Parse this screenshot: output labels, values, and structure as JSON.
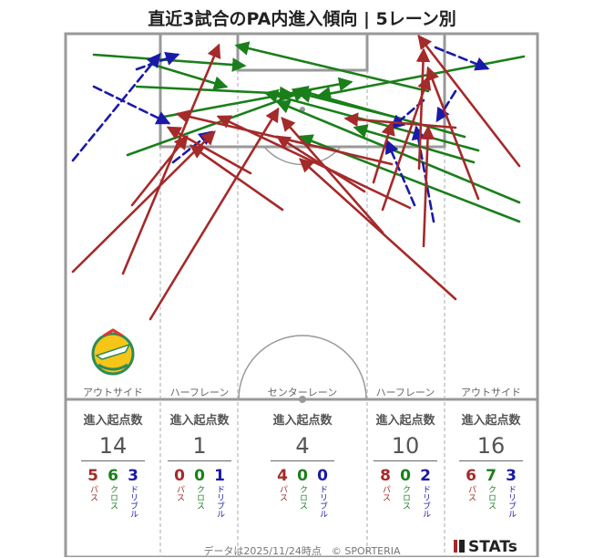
{
  "title": "直近3試合のPA内進入傾向 | 5レーン別",
  "lanes": [
    {
      "label": "アウトサイド",
      "stat_header": "進入起点数",
      "total": "14",
      "pass": "5",
      "cross": "6",
      "dribble": "3"
    },
    {
      "label": "ハーフレーン",
      "stat_header": "進入起点数",
      "total": "1",
      "pass": "0",
      "cross": "0",
      "dribble": "1"
    },
    {
      "label": "センターレーン",
      "stat_header": "進入起点数",
      "total": "4",
      "pass": "4",
      "cross": "0",
      "dribble": "0"
    },
    {
      "label": "ハーフレーン",
      "stat_header": "進入起点数",
      "total": "10",
      "pass": "8",
      "cross": "0",
      "dribble": "2"
    },
    {
      "label": "アウトサイド",
      "stat_header": "進入起点数",
      "total": "16",
      "pass": "6",
      "cross": "7",
      "dribble": "3"
    }
  ],
  "type_labels": {
    "pass": "パス",
    "cross": "クロス",
    "dribble": "ドリブル"
  },
  "colors": {
    "pass": "#a52a2a",
    "cross": "#1a7f1a",
    "dribble": "#1a1aa8",
    "pitch_line": "#999999"
  },
  "footer": "データは2025/11/24時点　© SPORTERIA",
  "brand": "STATs",
  "arrows": [
    {
      "type": "cross",
      "from": [
        103,
        60
      ],
      "to": [
        268,
        72
      ]
    },
    {
      "type": "cross",
      "from": [
        150,
        95
      ],
      "to": [
        320,
        103
      ]
    },
    {
      "type": "cross",
      "from": [
        140,
        170
      ],
      "to": [
        335,
        100
      ]
    },
    {
      "type": "cross",
      "from": [
        165,
        70
      ],
      "to": [
        248,
        95
      ]
    },
    {
      "type": "cross",
      "from": [
        180,
        128
      ],
      "to": [
        385,
        90
      ]
    },
    {
      "type": "cross",
      "from": [
        575,
        62
      ],
      "to": [
        350,
        105
      ]
    },
    {
      "type": "cross",
      "from": [
        570,
        222
      ],
      "to": [
        305,
        112
      ]
    },
    {
      "type": "cross",
      "from": [
        570,
        243
      ],
      "to": [
        330,
        150
      ]
    },
    {
      "type": "cross",
      "from": [
        520,
        178
      ],
      "to": [
        390,
        140
      ]
    },
    {
      "type": "cross",
      "from": [
        510,
        150
      ],
      "to": [
        325,
        98
      ]
    },
    {
      "type": "cross",
      "from": [
        470,
        100
      ],
      "to": [
        260,
        50
      ]
    },
    {
      "type": "cross",
      "from": [
        525,
        165
      ],
      "to": [
        292,
        102
      ]
    },
    {
      "type": "cross",
      "from": [
        440,
        130
      ],
      "to": [
        328,
        102
      ]
    },
    {
      "type": "dribble",
      "from": [
        80,
        176
      ],
      "to": [
        175,
        60
      ]
    },
    {
      "type": "dribble",
      "from": [
        103,
        95
      ],
      "to": [
        185,
        135
      ]
    },
    {
      "type": "dribble",
      "from": [
        150,
        76
      ],
      "to": [
        195,
        60
      ]
    },
    {
      "type": "dribble",
      "from": [
        190,
        178
      ],
      "to": [
        232,
        145
      ]
    },
    {
      "type": "dribble",
      "from": [
        478,
        52
      ],
      "to": [
        535,
        75
      ]
    },
    {
      "type": "dribble",
      "from": [
        500,
        100
      ],
      "to": [
        480,
        132
      ]
    },
    {
      "type": "dribble",
      "from": [
        465,
        110
      ],
      "to": [
        430,
        140
      ]
    },
    {
      "type": "dribble",
      "from": [
        455,
        225
      ],
      "to": [
        425,
        155
      ]
    },
    {
      "type": "dribble",
      "from": [
        476,
        243
      ],
      "to": [
        457,
        140
      ]
    },
    {
      "type": "pass",
      "from": [
        80,
        298
      ],
      "to": [
        235,
        145
      ]
    },
    {
      "type": "pass",
      "from": [
        135,
        300
      ],
      "to": [
        240,
        50
      ]
    },
    {
      "type": "pass",
      "from": [
        165,
        350
      ],
      "to": [
        305,
        120
      ]
    },
    {
      "type": "pass",
      "from": [
        145,
        225
      ],
      "to": [
        205,
        150
      ]
    },
    {
      "type": "pass",
      "from": [
        310,
        230
      ],
      "to": [
        210,
        160
      ]
    },
    {
      "type": "pass",
      "from": [
        275,
        190
      ],
      "to": [
        185,
        140
      ]
    },
    {
      "type": "pass",
      "from": [
        500,
        328
      ],
      "to": [
        330,
        175
      ]
    },
    {
      "type": "pass",
      "from": [
        420,
        255
      ],
      "to": [
        310,
        130
      ]
    },
    {
      "type": "pass",
      "from": [
        450,
        228
      ],
      "to": [
        240,
        128
      ]
    },
    {
      "type": "pass",
      "from": [
        420,
        230
      ],
      "to": [
        470,
        85
      ]
    },
    {
      "type": "pass",
      "from": [
        460,
        185
      ],
      "to": [
        465,
        55
      ]
    },
    {
      "type": "pass",
      "from": [
        465,
        270
      ],
      "to": [
        470,
        140
      ]
    },
    {
      "type": "pass",
      "from": [
        570,
        182
      ],
      "to": [
        460,
        40
      ]
    },
    {
      "type": "pass",
      "from": [
        525,
        218
      ],
      "to": [
        470,
        75
      ]
    },
    {
      "type": "pass",
      "from": [
        410,
        200
      ],
      "to": [
        430,
        135
      ]
    },
    {
      "type": "pass",
      "from": [
        400,
        210
      ],
      "to": [
        305,
        150
      ]
    },
    {
      "type": "pass",
      "from": [
        430,
        180
      ],
      "to": [
        195,
        125
      ]
    },
    {
      "type": "pass",
      "from": [
        500,
        140
      ],
      "to": [
        380,
        130
      ]
    }
  ]
}
